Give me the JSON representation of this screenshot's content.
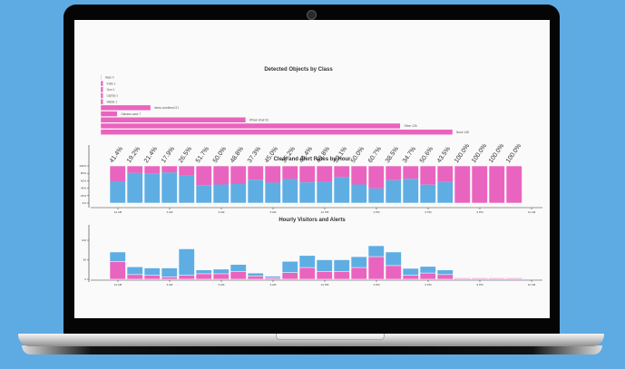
{
  "colors": {
    "background": "#5eaae3",
    "alert": "#e964be",
    "clear": "#5eaee3",
    "axis": "#333333"
  },
  "chart_data": [
    {
      "type": "bar",
      "orientation": "horizontal",
      "title": "Detected Objects by Class",
      "categories": [
        "Vase",
        "Knife",
        "Gun",
        "Laptop",
        "Wallet",
        "Items combined",
        "Glasses case",
        "Wheel chair",
        "Other",
        "None"
      ],
      "values": [
        0,
        1,
        1,
        1,
        1,
        21,
        7,
        61,
        126,
        148
      ],
      "labels": [
        "Vase 0",
        "Knife 1",
        "Gun 1",
        "Laptop 1",
        "Wallet 1",
        "Items combined 21",
        "Glasses case 7",
        "Wheel chair 61",
        "Other 126",
        "None 148"
      ]
    },
    {
      "type": "bar",
      "stacked": true,
      "title": "Clear and Alert Rates by Hour",
      "x_ticks": [
        "12 AM",
        "3 AM",
        "6 AM",
        "9 AM",
        "12 PM",
        "3 PM",
        "6 PM",
        "9 PM",
        "12 AM"
      ],
      "y_ticks": [
        "0%",
        "20%",
        "40%",
        "60%",
        "80%",
        "100%"
      ],
      "ylim": [
        0,
        100
      ],
      "alert_rate": [
        41.4,
        19.2,
        21.4,
        17.9,
        26.5,
        51.7,
        50.0,
        48.8,
        37.3,
        45.0,
        35.2,
        44.4,
        42.8,
        30.1,
        50.0,
        60.7,
        38.5,
        34.7,
        50.6,
        43.5,
        100.0,
        100.0,
        100.0,
        100.0
      ],
      "labels": [
        "41.4%",
        "19.2%",
        "21.4%",
        "17.9%",
        "26.5%",
        "51.7%",
        "50.0%",
        "48.8%",
        "37.3%",
        "45.0%",
        "35.2%",
        "44.4%",
        "42.8%",
        "30.1%",
        "50.0%",
        "60.7%",
        "38.5%",
        "34.7%",
        "50.6%",
        "43.5%",
        "100.0%",
        "100.0%",
        "100.0%",
        "100.0%"
      ]
    },
    {
      "type": "bar",
      "title": "Hourly Visitors and Alerts",
      "x_ticks": [
        "12 AM",
        "3 AM",
        "6 AM",
        "9 AM",
        "12 PM",
        "3 PM",
        "6 PM",
        "9 PM",
        "12 AM"
      ],
      "y_ticks": [
        "0",
        "50",
        "100"
      ],
      "ylim": [
        0,
        140
      ],
      "visitors": [
        70,
        32,
        29,
        29,
        78,
        24,
        26,
        38,
        16,
        8,
        46,
        61,
        50,
        50,
        58,
        86,
        70,
        28,
        33,
        24,
        0,
        0,
        0,
        0
      ],
      "alerts": [
        45,
        12,
        10,
        6,
        10,
        14,
        14,
        20,
        8,
        3,
        17,
        30,
        20,
        20,
        30,
        58,
        35,
        10,
        16,
        12,
        0,
        0,
        0,
        0
      ]
    }
  ]
}
